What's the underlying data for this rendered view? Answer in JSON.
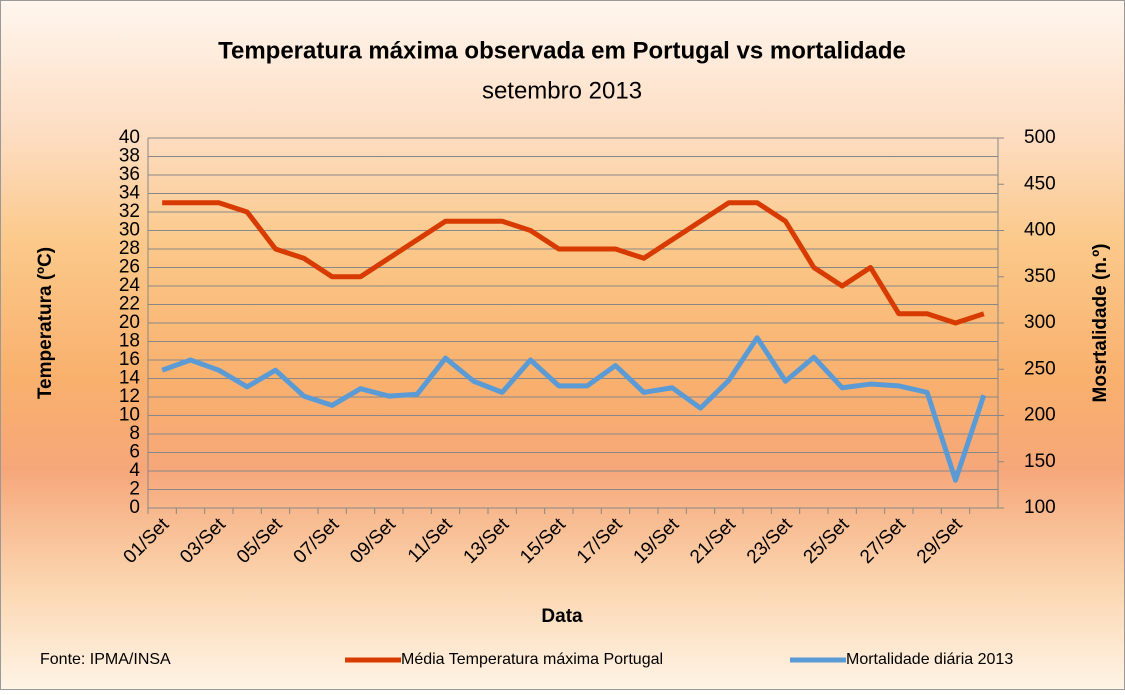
{
  "chart_data": {
    "type": "line",
    "title": "Temperatura máxima observada em Portugal vs mortalidade",
    "subtitle": "setembro 2013",
    "x_label": "Data",
    "y_label": "Temperatura (ºC)",
    "y2_label": "Mosrtalidade (n.º)",
    "source": "Fonte: IPMA/INSA",
    "categories": [
      "01/Set",
      null,
      "03/Set",
      null,
      "05/Set",
      null,
      "07/Set",
      null,
      "09/Set",
      null,
      "11/Set",
      null,
      "13/Set",
      null,
      "15/Set",
      null,
      "17/Set",
      null,
      "19/Set",
      null,
      "21/Set",
      null,
      "23/Set",
      null,
      "25/Set",
      null,
      "27/Set",
      null,
      "29/Set",
      null
    ],
    "series": [
      {
        "name": "Média Temperatura máxima Portugal",
        "color": "#d83b01",
        "values": [
          33,
          33,
          33,
          32,
          28,
          27,
          25,
          25,
          27,
          29,
          31,
          31,
          31,
          30,
          28,
          28,
          28,
          27,
          29,
          31,
          33,
          33,
          31,
          26,
          24,
          26,
          21,
          21,
          20,
          21
        ]
      },
      {
        "name": "Mortalidade diária 2013",
        "color": "#5b9bd5",
        "axis": "y2",
        "values": [
          249,
          260,
          249,
          231,
          249,
          221,
          211,
          229,
          221,
          223,
          262,
          237,
          225,
          260,
          232,
          232,
          254,
          225,
          230,
          208,
          238,
          284,
          237,
          263,
          230,
          234,
          232,
          225,
          130,
          222
        ]
      }
    ],
    "ylim": [
      0,
      40
    ],
    "yticks": [
      0,
      2,
      4,
      6,
      8,
      10,
      12,
      14,
      16,
      18,
      20,
      22,
      24,
      26,
      28,
      30,
      32,
      34,
      36,
      38,
      40
    ],
    "y2lim": [
      100,
      500
    ],
    "y2ticks": [
      100,
      150,
      200,
      250,
      300,
      350,
      400,
      450,
      500
    ],
    "grid": true,
    "legend": "bottom"
  }
}
